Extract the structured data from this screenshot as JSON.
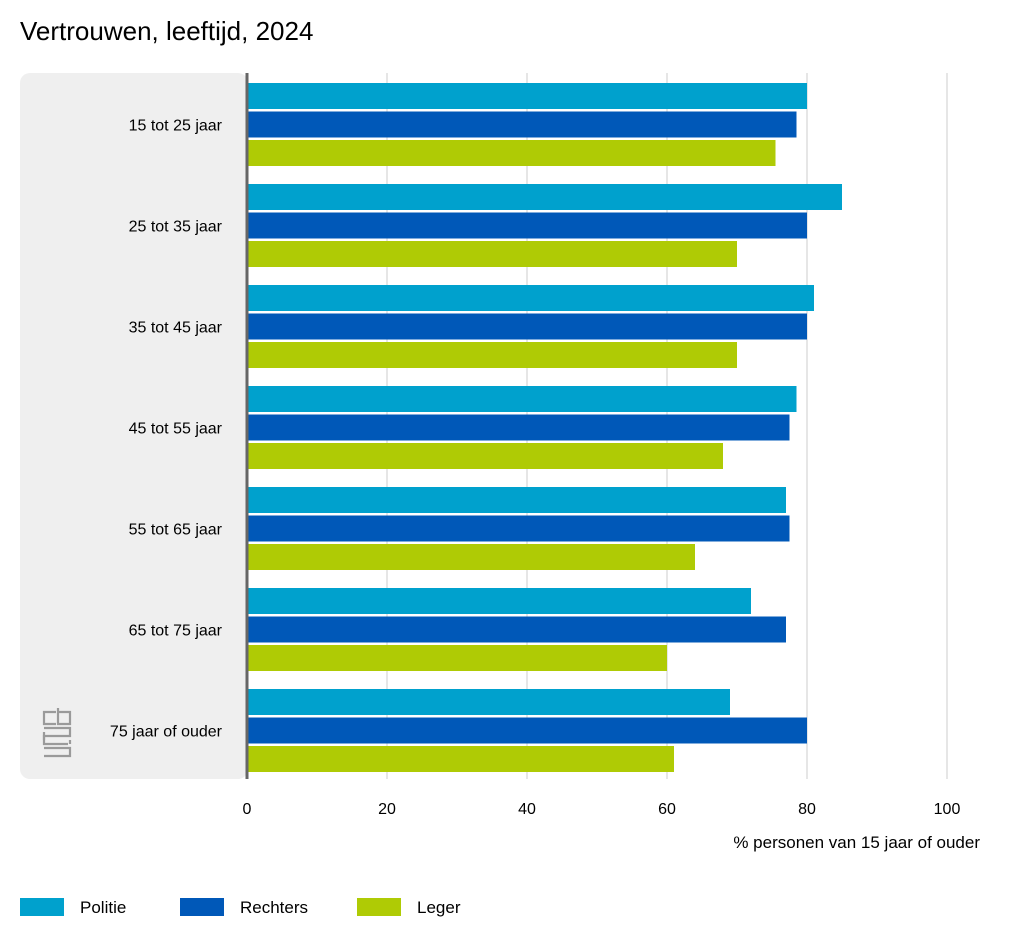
{
  "chart_data": {
    "type": "bar",
    "orientation": "horizontal",
    "title": "Vertrouwen, leeftijd, 2024",
    "xlabel": "% personen van 15 jaar of ouder",
    "ylabel": "",
    "xlim": [
      0,
      100
    ],
    "ticks": [
      "0",
      "20",
      "40",
      "60",
      "80",
      "100"
    ],
    "tick_values": [
      0,
      20,
      40,
      60,
      80,
      100
    ],
    "grid": true,
    "legend_position": "bottom-left",
    "categories": [
      "15 tot 25 jaar",
      "25 tot 35 jaar",
      "35 tot 45 jaar",
      "45 tot 55 jaar",
      "55 tot 65 jaar",
      "65 tot 75 jaar",
      "75 jaar of ouder"
    ],
    "series": [
      {
        "name": "Politie",
        "color": "#00a1cd",
        "values": [
          80,
          85,
          81,
          78.5,
          77,
          72,
          69
        ]
      },
      {
        "name": "Rechters",
        "color": "#0058b8",
        "values": [
          78.5,
          80,
          80,
          77.5,
          77.5,
          77,
          80
        ]
      },
      {
        "name": "Leger",
        "color": "#afcb05",
        "values": [
          75.5,
          70,
          70,
          68,
          64,
          60,
          61
        ]
      }
    ]
  },
  "logo": {
    "text": "cbs",
    "icon": "cbs-logo-icon"
  }
}
